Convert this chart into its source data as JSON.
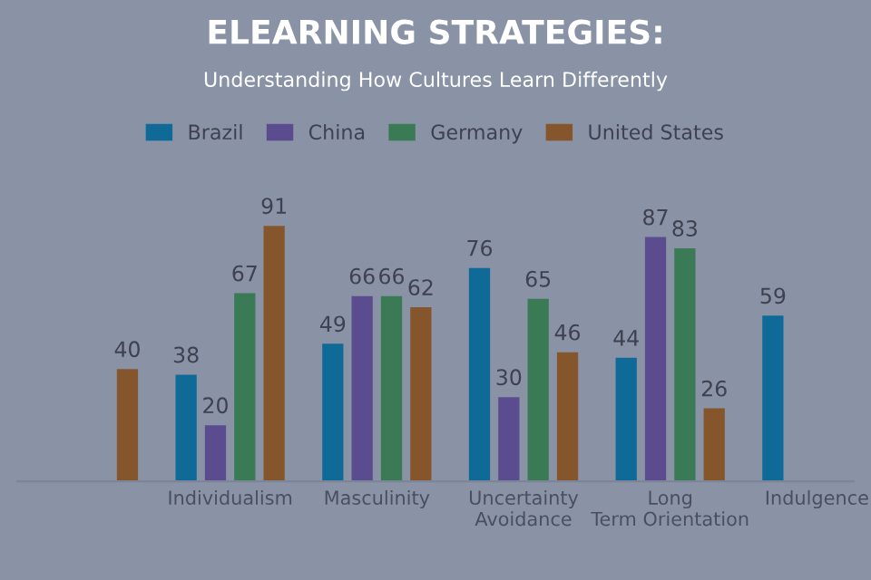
{
  "chart_data": {
    "type": "bar",
    "title": "ELEARNING STRATEGIES:",
    "subtitle": "Understanding How Cultures Learn Differently",
    "categories": [
      null,
      "Individualism",
      "Masculinity",
      "Uncertainty Avoidance",
      "Long Term Orientation",
      "Indulgence"
    ],
    "series": [
      {
        "name": "Brazil",
        "color": "#106a98",
        "values": [
          null,
          38,
          49,
          76,
          44,
          59
        ]
      },
      {
        "name": "China",
        "color": "#5b4c8f",
        "values": [
          null,
          20,
          66,
          30,
          87,
          null
        ]
      },
      {
        "name": "Germany",
        "color": "#3a7a55",
        "values": [
          null,
          67,
          66,
          65,
          83,
          null
        ]
      },
      {
        "name": "United States",
        "color": "#85562c",
        "values": [
          40,
          91,
          62,
          46,
          26,
          null
        ]
      }
    ],
    "data_labels": true,
    "legend": "top",
    "grid": false
  }
}
